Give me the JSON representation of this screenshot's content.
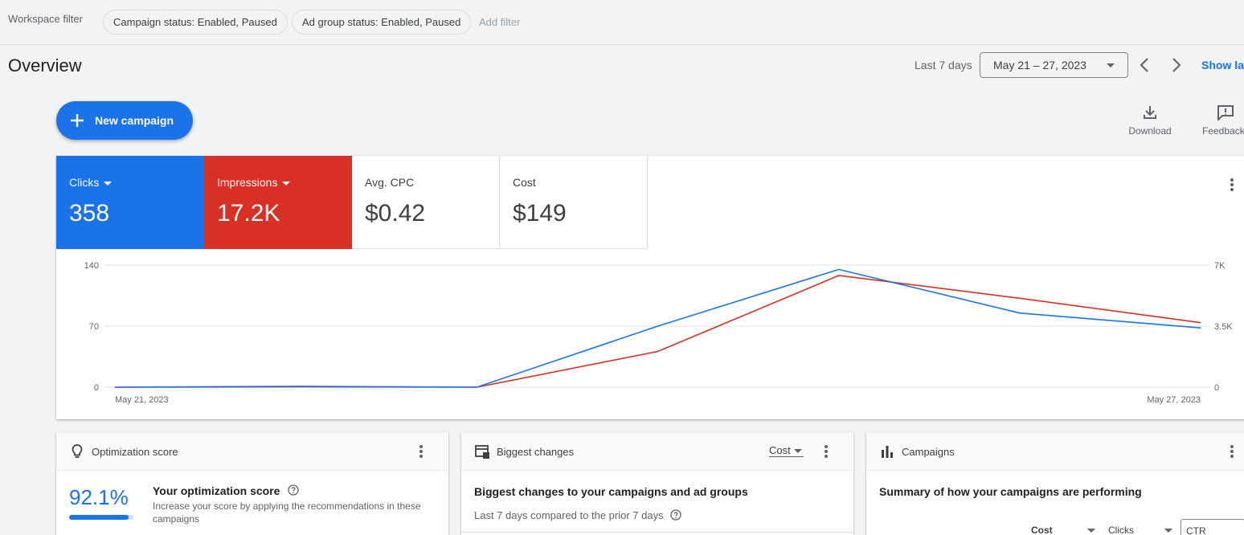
{
  "filters": {
    "label": "Workspace filter",
    "chips": [
      "Campaign status: Enabled, Paused",
      "Ad group status: Enabled, Paused"
    ],
    "add_filter": "Add filter"
  },
  "header": {
    "title": "Overview",
    "range_label": "Last 7 days",
    "date_range": "May 21 – 27, 2023",
    "show_last": "Show last"
  },
  "actions": {
    "new_campaign": "New campaign",
    "download": "Download",
    "feedback": "Feedback"
  },
  "metrics": {
    "clicks": {
      "label": "Clicks",
      "value": "358",
      "color": "#1a73e8"
    },
    "impressions": {
      "label": "Impressions",
      "value": "17.2K",
      "color": "#d93025"
    },
    "avg_cpc": {
      "label": "Avg. CPC",
      "value": "$0.42"
    },
    "cost": {
      "label": "Cost",
      "value": "$149"
    }
  },
  "chart_data": {
    "type": "line",
    "x": [
      "May 21, 2023",
      "May 22, 2023",
      "May 23, 2023",
      "May 24, 2023",
      "May 25, 2023",
      "May 26, 2023",
      "May 27, 2023"
    ],
    "x_tick_labels": [
      "May 21, 2023",
      "May 27, 2023"
    ],
    "left_ticks": [
      "0",
      "70",
      "140"
    ],
    "right_ticks": [
      "0",
      "3.5K",
      "7K"
    ],
    "ylim_left": [
      0,
      140
    ],
    "ylim_right": [
      0,
      7000
    ],
    "grid": true,
    "series": [
      {
        "name": "Clicks",
        "axis": "left",
        "color": "#1a73e8",
        "values": [
          0,
          1,
          0,
          70,
          135,
          85,
          68
        ]
      },
      {
        "name": "Impressions",
        "axis": "right",
        "color": "#d93025",
        "values": [
          0,
          20,
          0,
          2050,
          6400,
          5100,
          3700
        ]
      }
    ]
  },
  "cards": {
    "optimization": {
      "title": "Optimization score",
      "score": "92.1%",
      "score_fraction": 0.921,
      "heading": "Your optimization score",
      "description": "Increase your score by applying the recommendations in these campaigns"
    },
    "biggest_changes": {
      "title": "Biggest changes",
      "metric": "Cost",
      "heading": "Biggest changes to your campaigns and ad groups",
      "sub": "Last 7 days compared to the prior 7 days"
    },
    "campaigns": {
      "title": "Campaigns",
      "heading": "Summary of how your campaigns are performing",
      "columns": [
        "Cost",
        "Clicks",
        "CTR"
      ]
    }
  }
}
